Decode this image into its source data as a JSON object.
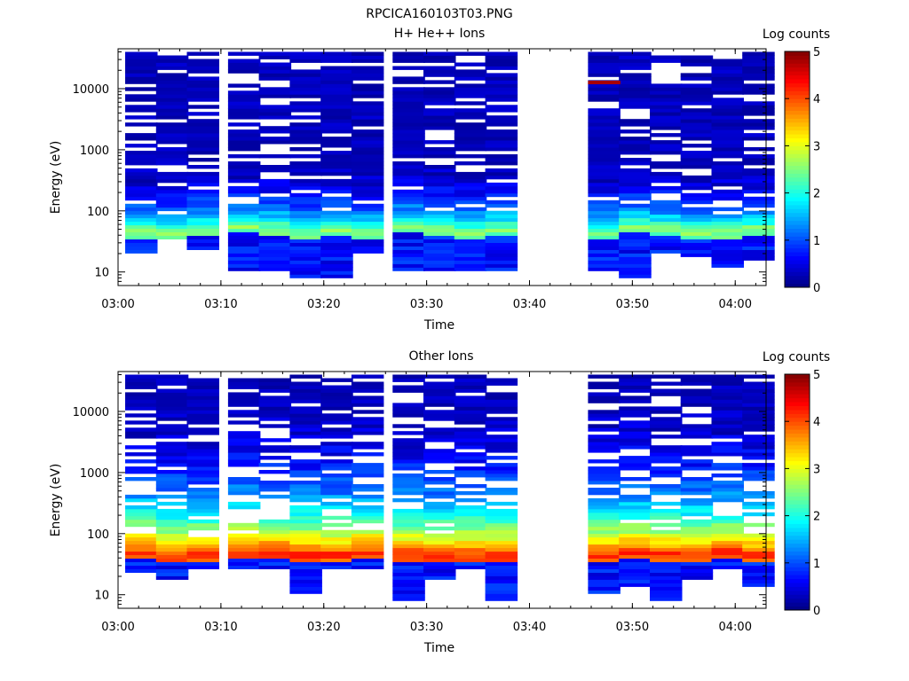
{
  "window_title": "RPCICA160103T03.PNG",
  "colors": {
    "colormap": [
      "#00007f",
      "#0000ff",
      "#007fff",
      "#00ffff",
      "#7fff7f",
      "#ffff00",
      "#ff7f00",
      "#ff0000",
      "#7f0000"
    ],
    "background": "#ffffff",
    "axis": "#000000"
  },
  "chart_data": [
    {
      "type": "heatmap",
      "title": "H+ He++ Ions",
      "xlabel": "Time",
      "ylabel": "Energy (eV)",
      "y_scale": "log",
      "ylim": [
        6,
        45000
      ],
      "xlim": [
        "03:00",
        "04:03"
      ],
      "x_ticks": [
        "03:00",
        "03:10",
        "03:20",
        "03:30",
        "03:40",
        "03:50",
        "04:00"
      ],
      "y_ticks": [
        "10",
        "100",
        "1000",
        "10000"
      ],
      "colorbar": {
        "label": "Log counts",
        "range": [
          0,
          5
        ],
        "ticks": [
          "0",
          "1",
          "2",
          "3",
          "4",
          "5"
        ]
      },
      "time_bins": [
        "03:00",
        "03:03",
        "03:06",
        "03:10",
        "03:13",
        "03:16",
        "03:19",
        "03:22",
        "03:26",
        "03:29",
        "03:32",
        "03:35",
        "03:45",
        "03:48",
        "03:51",
        "03:54",
        "03:57",
        "04:00"
      ],
      "data_gap": [
        "03:39",
        "03:42"
      ],
      "profiles": [
        {
          "low": 20,
          "peak": 45,
          "sparse": 0.9
        },
        {
          "low": 35,
          "peak": 45,
          "sparse": 1.0
        },
        {
          "low": 22,
          "peak": 50,
          "sparse": 0.9
        },
        {
          "low": 10,
          "peak": 55,
          "sparse": 1.0
        },
        {
          "low": 10,
          "peak": 50,
          "sparse": 0.8
        },
        {
          "low": 7,
          "peak": 45,
          "sparse": 0.9
        },
        {
          "low": 7,
          "peak": 50,
          "sparse": 1.0
        },
        {
          "low": 20,
          "peak": 45,
          "sparse": 1.0
        },
        {
          "low": 10,
          "peak": 55,
          "sparse": 0.9
        },
        {
          "low": 10,
          "peak": 50,
          "sparse": 1.0
        },
        {
          "low": 10,
          "peak": 45,
          "sparse": 0.9
        },
        {
          "low": 10,
          "peak": 50,
          "sparse": 1.0
        },
        {
          "low": 10,
          "peak": 45,
          "sparse": 1.0
        },
        {
          "low": 7,
          "peak": 55,
          "sparse": 1.0
        },
        {
          "low": 20,
          "peak": 50,
          "sparse": 0.9
        },
        {
          "low": 17,
          "peak": 45,
          "sparse": 0.9
        },
        {
          "low": 12,
          "peak": 45,
          "sparse": 0.9
        },
        {
          "low": 15,
          "peak": 50,
          "sparse": 1.0
        }
      ],
      "peak_level": 2.6,
      "max_level": 4.8
    },
    {
      "type": "heatmap",
      "title": "Other Ions",
      "xlabel": "Time",
      "ylabel": "Energy (eV)",
      "y_scale": "log",
      "ylim": [
        6,
        45000
      ],
      "xlim": [
        "03:00",
        "04:03"
      ],
      "x_ticks": [
        "03:00",
        "03:10",
        "03:20",
        "03:30",
        "03:40",
        "03:50",
        "04:00"
      ],
      "y_ticks": [
        "10",
        "100",
        "1000",
        "10000"
      ],
      "colorbar": {
        "label": "Log counts",
        "range": [
          0,
          5
        ],
        "ticks": [
          "0",
          "1",
          "2",
          "3",
          "4",
          "5"
        ]
      },
      "time_bins": [
        "03:00",
        "03:03",
        "03:06",
        "03:10",
        "03:13",
        "03:16",
        "03:19",
        "03:22",
        "03:26",
        "03:29",
        "03:32",
        "03:35",
        "03:45",
        "03:48",
        "03:51",
        "03:54",
        "03:57",
        "04:00"
      ],
      "data_gap": [
        "03:39",
        "03:42"
      ],
      "profiles": [
        {
          "low": 22,
          "peak": 50,
          "sparse": 0.8
        },
        {
          "low": 17,
          "peak": 45,
          "sparse": 0.8
        },
        {
          "low": 25,
          "peak": 45,
          "sparse": 0.9
        },
        {
          "low": 25,
          "peak": 50,
          "sparse": 0.9
        },
        {
          "low": 25,
          "peak": 50,
          "sparse": 0.5
        },
        {
          "low": 10,
          "peak": 45,
          "sparse": 0.9
        },
        {
          "low": 25,
          "peak": 45,
          "sparse": 0.9
        },
        {
          "low": 25,
          "peak": 50,
          "sparse": 0.9
        },
        {
          "low": 8,
          "peak": 45,
          "sparse": 0.9
        },
        {
          "low": 17,
          "peak": 45,
          "sparse": 0.9
        },
        {
          "low": 25,
          "peak": 45,
          "sparse": 0.9
        },
        {
          "low": 7,
          "peak": 45,
          "sparse": 0.9
        },
        {
          "low": 10,
          "peak": 45,
          "sparse": 0.9
        },
        {
          "low": 14,
          "peak": 50,
          "sparse": 0.9
        },
        {
          "low": 8,
          "peak": 45,
          "sparse": 0.8
        },
        {
          "low": 17,
          "peak": 45,
          "sparse": 0.9
        },
        {
          "low": 25,
          "peak": 50,
          "sparse": 0.9
        },
        {
          "low": 13,
          "peak": 45,
          "sparse": 0.9
        }
      ],
      "peak_level": 4.2,
      "max_level": 4.4
    }
  ]
}
